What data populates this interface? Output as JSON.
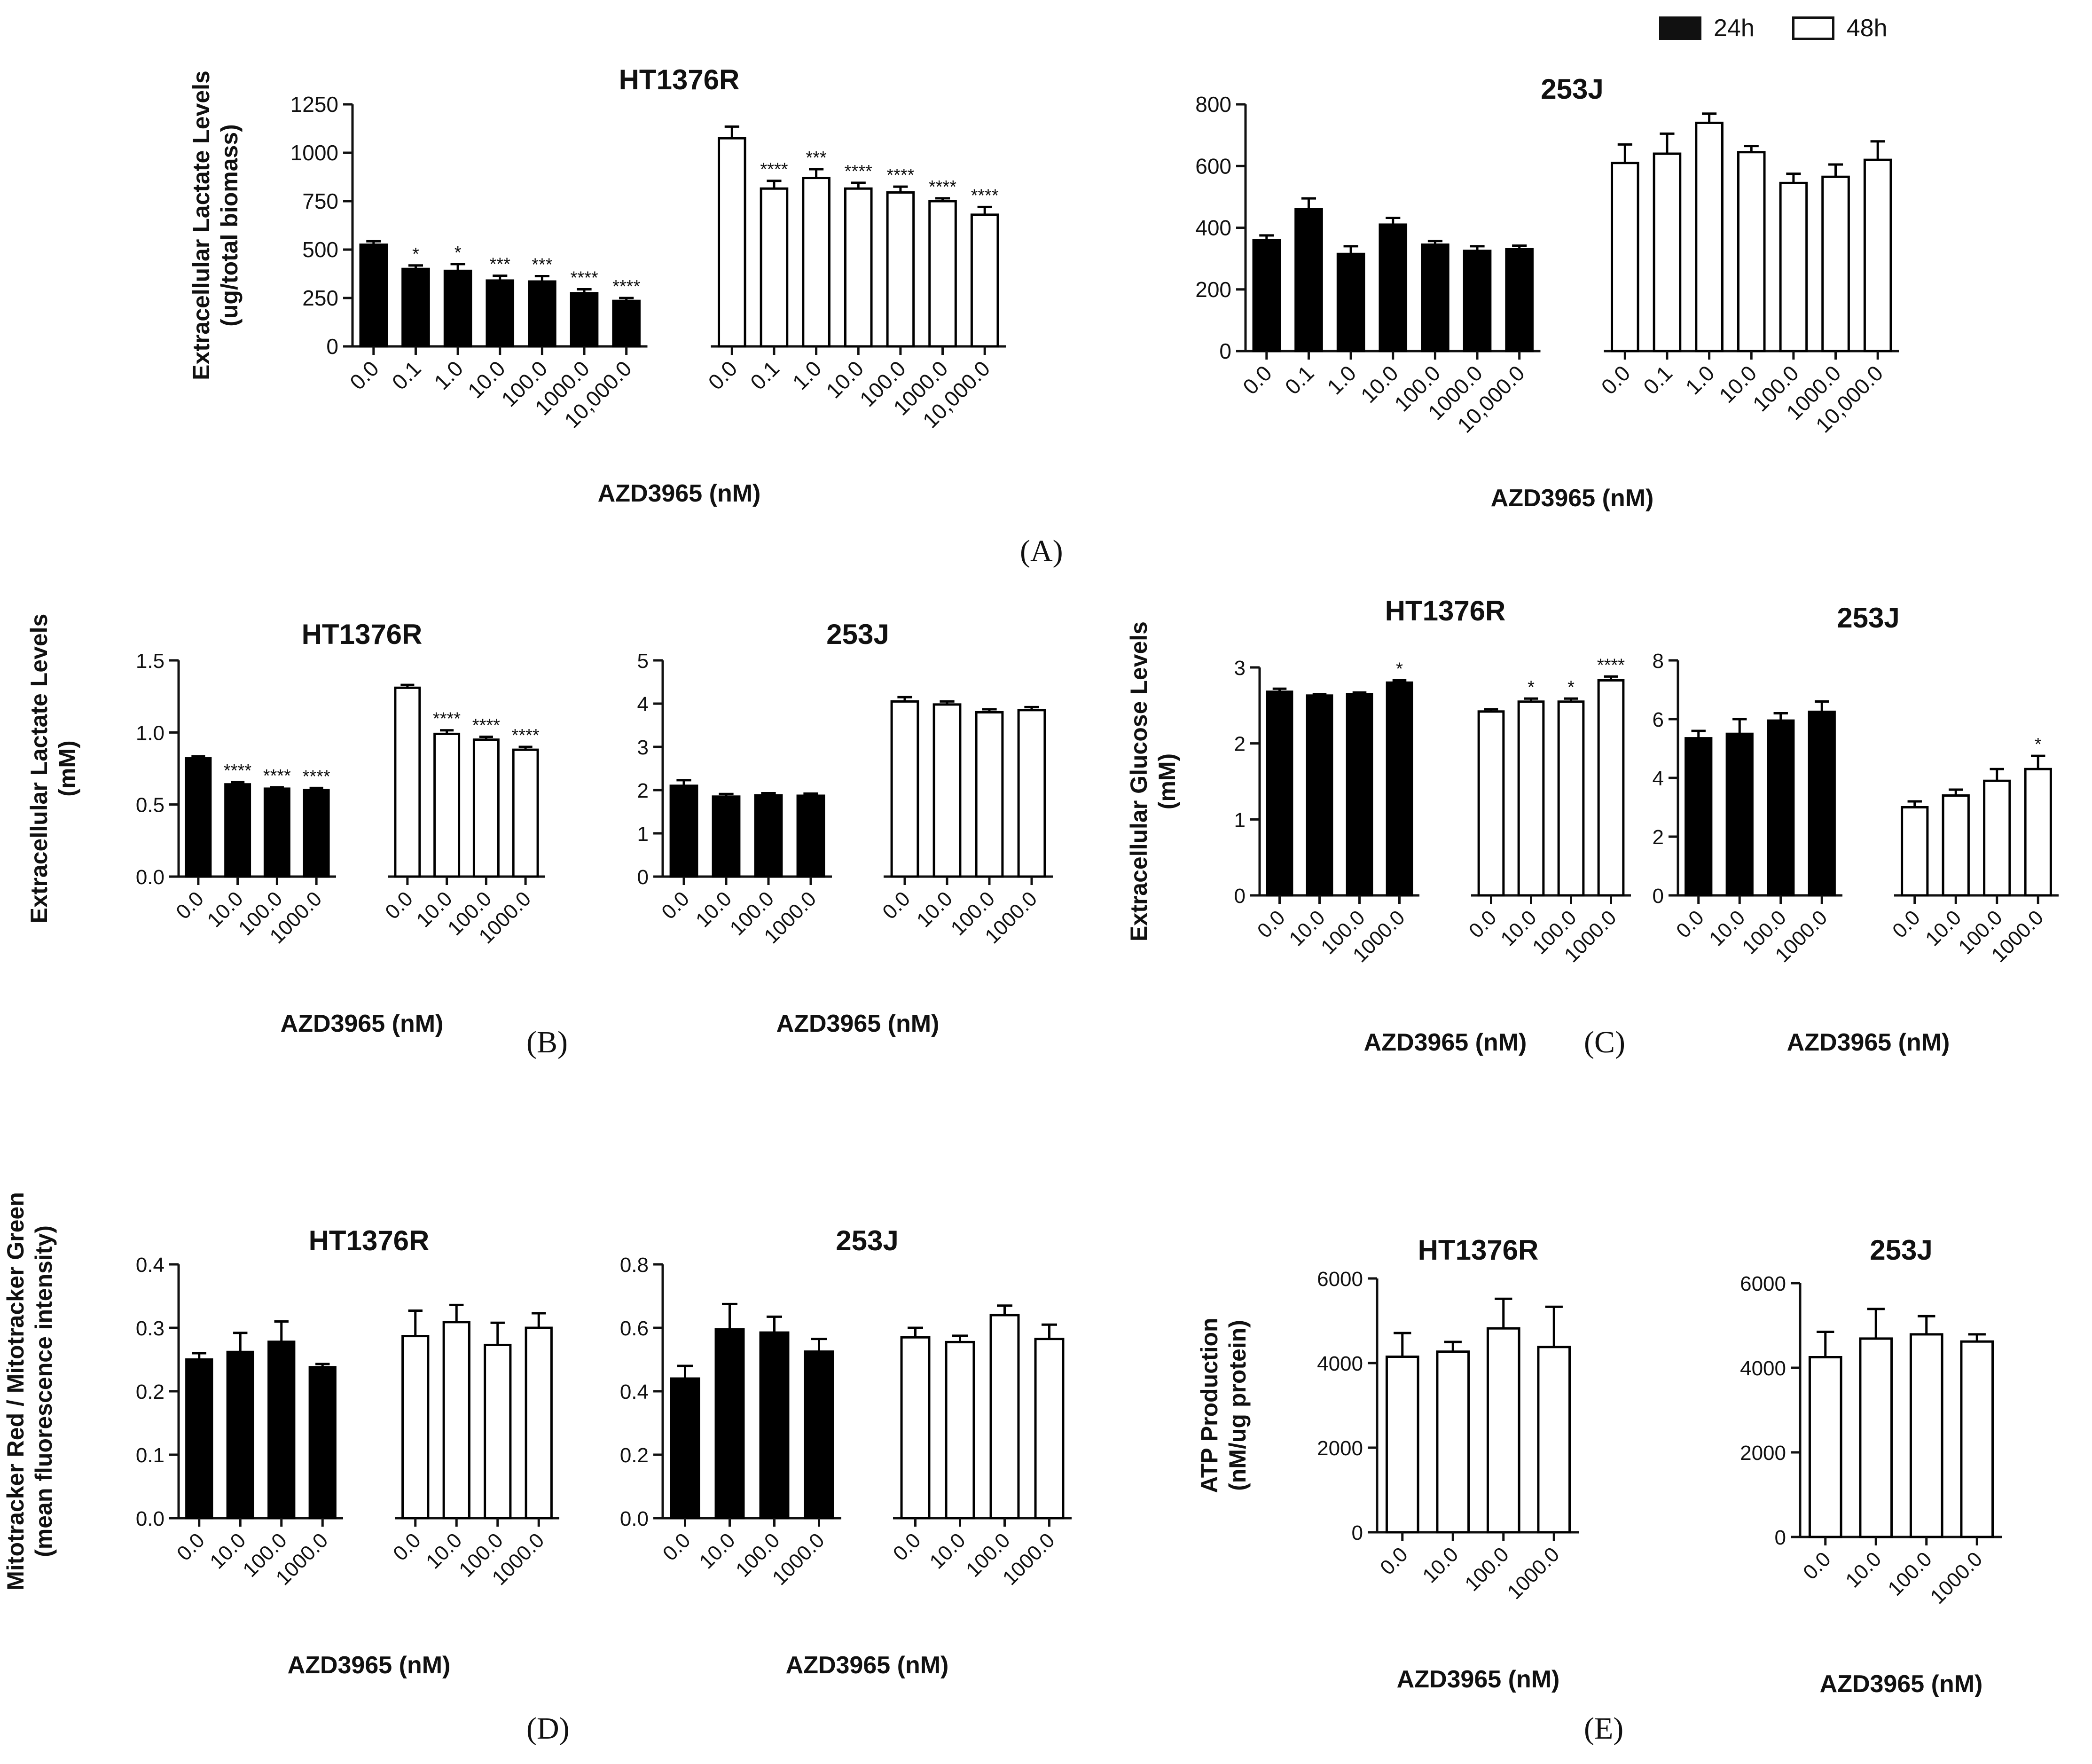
{
  "legend": {
    "series_24h": "24h",
    "series_48h": "48h"
  },
  "panel_labels": {
    "A": "(A)",
    "B": "(B)",
    "C": "(C)",
    "D": "(D)",
    "E": "(E)"
  },
  "chart_data": [
    {
      "id": "A-HT1376R",
      "type": "bar",
      "title": "HT1376R",
      "ylabel": [
        "Extracellular Lactate Levels",
        "(ug/total biomass)"
      ],
      "xlabel": "AZD3965 (nM)",
      "ylim": [
        0,
        1250
      ],
      "yticks": [
        "0",
        "250",
        "500",
        "750",
        "1000",
        "1250"
      ],
      "categories": [
        "0.0",
        "0.1",
        "1.0",
        "10.0",
        "100.0",
        "1000.0",
        "10,000.0"
      ],
      "series": [
        {
          "name": "24h",
          "values": [
            525,
            400,
            390,
            340,
            335,
            275,
            235
          ],
          "errors": [
            18,
            18,
            35,
            25,
            28,
            20,
            15
          ],
          "significance": [
            "",
            "*",
            "*",
            "***",
            "***",
            "****",
            "****"
          ]
        },
        {
          "name": "48h",
          "values": [
            1075,
            815,
            870,
            815,
            795,
            750,
            680
          ],
          "errors": [
            60,
            40,
            45,
            30,
            30,
            15,
            40
          ],
          "significance": [
            "",
            "****",
            "***",
            "****",
            "****",
            "****",
            "****"
          ]
        }
      ]
    },
    {
      "id": "A-253J",
      "type": "bar",
      "title": "253J",
      "ylabel": [],
      "xlabel": "AZD3965 (nM)",
      "ylim": [
        0,
        800
      ],
      "yticks": [
        "0",
        "200",
        "400",
        "600",
        "800"
      ],
      "categories": [
        "0.0",
        "0.1",
        "1.0",
        "10.0",
        "100.0",
        "1000.0",
        "10,000.0"
      ],
      "series": [
        {
          "name": "24h",
          "values": [
            360,
            460,
            315,
            410,
            345,
            325,
            330
          ],
          "errors": [
            15,
            35,
            25,
            22,
            12,
            15,
            12
          ],
          "significance": []
        },
        {
          "name": "48h",
          "values": [
            610,
            640,
            740,
            645,
            545,
            565,
            620
          ],
          "errors": [
            60,
            65,
            30,
            20,
            30,
            40,
            60
          ],
          "significance": []
        }
      ]
    },
    {
      "id": "B-HT1376R",
      "type": "bar",
      "title": "HT1376R",
      "ylabel": [
        "Extracellular Lactate Levels",
        "(mM)"
      ],
      "xlabel": "AZD3965 (nM)",
      "ylim": [
        0,
        1.5
      ],
      "yticks": [
        "0.0",
        "0.5",
        "1.0",
        "1.5"
      ],
      "categories": [
        "0.0",
        "10.0",
        "100.0",
        "1000.0"
      ],
      "series": [
        {
          "name": "24h",
          "values": [
            0.82,
            0.64,
            0.61,
            0.6
          ],
          "errors": [
            0.015,
            0.015,
            0.01,
            0.015
          ],
          "significance": [
            "",
            "****",
            "****",
            "****"
          ]
        },
        {
          "name": "48h",
          "values": [
            1.31,
            0.99,
            0.95,
            0.88
          ],
          "errors": [
            0.02,
            0.025,
            0.02,
            0.02
          ],
          "significance": [
            "",
            "****",
            "****",
            "****"
          ]
        }
      ]
    },
    {
      "id": "B-253J",
      "type": "bar",
      "title": "253J",
      "ylabel": [],
      "xlabel": "AZD3965 (nM)",
      "ylim": [
        0,
        5
      ],
      "yticks": [
        "0",
        "1",
        "2",
        "3",
        "4",
        "5"
      ],
      "categories": [
        "0.0",
        "10.0",
        "100.0",
        "1000.0"
      ],
      "series": [
        {
          "name": "24h",
          "values": [
            2.1,
            1.85,
            1.88,
            1.87
          ],
          "errors": [
            0.13,
            0.06,
            0.05,
            0.05
          ],
          "significance": []
        },
        {
          "name": "48h",
          "values": [
            4.05,
            3.98,
            3.8,
            3.85
          ],
          "errors": [
            0.1,
            0.07,
            0.07,
            0.07
          ],
          "significance": []
        }
      ]
    },
    {
      "id": "C-HT1376R",
      "type": "bar",
      "title": "HT1376R",
      "ylabel": [
        "Extracellular Glucose Levels",
        "(mM)"
      ],
      "xlabel": "AZD3965 (nM)",
      "ylim": [
        0,
        3
      ],
      "yticks": [
        "0",
        "1",
        "2",
        "3"
      ],
      "categories": [
        "0.0",
        "10.0",
        "100.0",
        "1000.0"
      ],
      "series": [
        {
          "name": "24h",
          "values": [
            2.68,
            2.63,
            2.65,
            2.8
          ],
          "errors": [
            0.04,
            0.02,
            0.02,
            0.03
          ],
          "significance": [
            "",
            "",
            "",
            "*"
          ]
        },
        {
          "name": "48h",
          "values": [
            2.42,
            2.55,
            2.55,
            2.83
          ],
          "errors": [
            0.03,
            0.04,
            0.04,
            0.05
          ],
          "significance": [
            "",
            "*",
            "*",
            "****"
          ]
        }
      ]
    },
    {
      "id": "C-253J",
      "type": "bar",
      "title": "253J",
      "ylabel": [],
      "xlabel": "AZD3965 (nM)",
      "ylim": [
        0,
        8
      ],
      "yticks": [
        "0",
        "2",
        "4",
        "6",
        "8"
      ],
      "categories": [
        "0.0",
        "10.0",
        "100.0",
        "1000.0"
      ],
      "series": [
        {
          "name": "24h",
          "values": [
            5.35,
            5.5,
            5.95,
            6.25
          ],
          "errors": [
            0.25,
            0.5,
            0.25,
            0.35
          ],
          "significance": []
        },
        {
          "name": "48h",
          "values": [
            3.0,
            3.4,
            3.9,
            4.3
          ],
          "errors": [
            0.2,
            0.2,
            0.4,
            0.45
          ],
          "significance": [
            "",
            "",
            "",
            "*"
          ]
        }
      ]
    },
    {
      "id": "D-HT1376R",
      "type": "bar",
      "title": "HT1376R",
      "ylabel": [
        "Mitotracker Red / Mitotracker Green",
        "(mean fluorescence intensity)"
      ],
      "xlabel": "AZD3965 (nM)",
      "ylim": [
        0,
        0.4
      ],
      "yticks": [
        "0.0",
        "0.1",
        "0.2",
        "0.3",
        "0.4"
      ],
      "categories": [
        "0.0",
        "10.0",
        "100.0",
        "1000.0"
      ],
      "series": [
        {
          "name": "24h",
          "values": [
            0.25,
            0.262,
            0.278,
            0.238
          ],
          "errors": [
            0.01,
            0.03,
            0.032,
            0.005
          ],
          "significance": []
        },
        {
          "name": "48h",
          "values": [
            0.287,
            0.309,
            0.273,
            0.3
          ],
          "errors": [
            0.04,
            0.027,
            0.035,
            0.023
          ],
          "significance": []
        }
      ]
    },
    {
      "id": "D-253J",
      "type": "bar",
      "title": "253J",
      "ylabel": [],
      "xlabel": "AZD3965 (nM)",
      "ylim": [
        0,
        0.8
      ],
      "yticks": [
        "0.0",
        "0.2",
        "0.4",
        "0.6",
        "0.8"
      ],
      "categories": [
        "0.0",
        "10.0",
        "100.0",
        "1000.0"
      ],
      "series": [
        {
          "name": "24h",
          "values": [
            0.44,
            0.595,
            0.585,
            0.525
          ],
          "errors": [
            0.04,
            0.08,
            0.05,
            0.04
          ],
          "significance": []
        },
        {
          "name": "48h",
          "values": [
            0.57,
            0.555,
            0.64,
            0.565
          ],
          "errors": [
            0.03,
            0.02,
            0.03,
            0.045
          ],
          "significance": []
        }
      ]
    },
    {
      "id": "E-HT1376R",
      "type": "bar",
      "title": "HT1376R",
      "ylabel": [
        "ATP Production",
        "(nM/ug protein)"
      ],
      "xlabel": "AZD3965 (nM)",
      "ylim": [
        0,
        6000
      ],
      "yticks": [
        "0",
        "2000",
        "4000",
        "6000"
      ],
      "categories": [
        "0.0",
        "10.0",
        "100.0",
        "1000.0"
      ],
      "series": [
        {
          "name": "48h",
          "values": [
            4150,
            4270,
            4820,
            4380
          ],
          "errors": [
            560,
            230,
            700,
            950
          ],
          "significance": []
        }
      ]
    },
    {
      "id": "E-253J",
      "type": "bar",
      "title": "253J",
      "ylabel": [],
      "xlabel": "AZD3965 (nM)",
      "ylim": [
        0,
        6000
      ],
      "yticks": [
        "0",
        "2000",
        "4000",
        "6000"
      ],
      "categories": [
        "0.0",
        "10.0",
        "100.0",
        "1000.0"
      ],
      "series": [
        {
          "name": "48h",
          "values": [
            4250,
            4690,
            4790,
            4620
          ],
          "errors": [
            600,
            700,
            430,
            170
          ],
          "significance": []
        }
      ]
    }
  ]
}
